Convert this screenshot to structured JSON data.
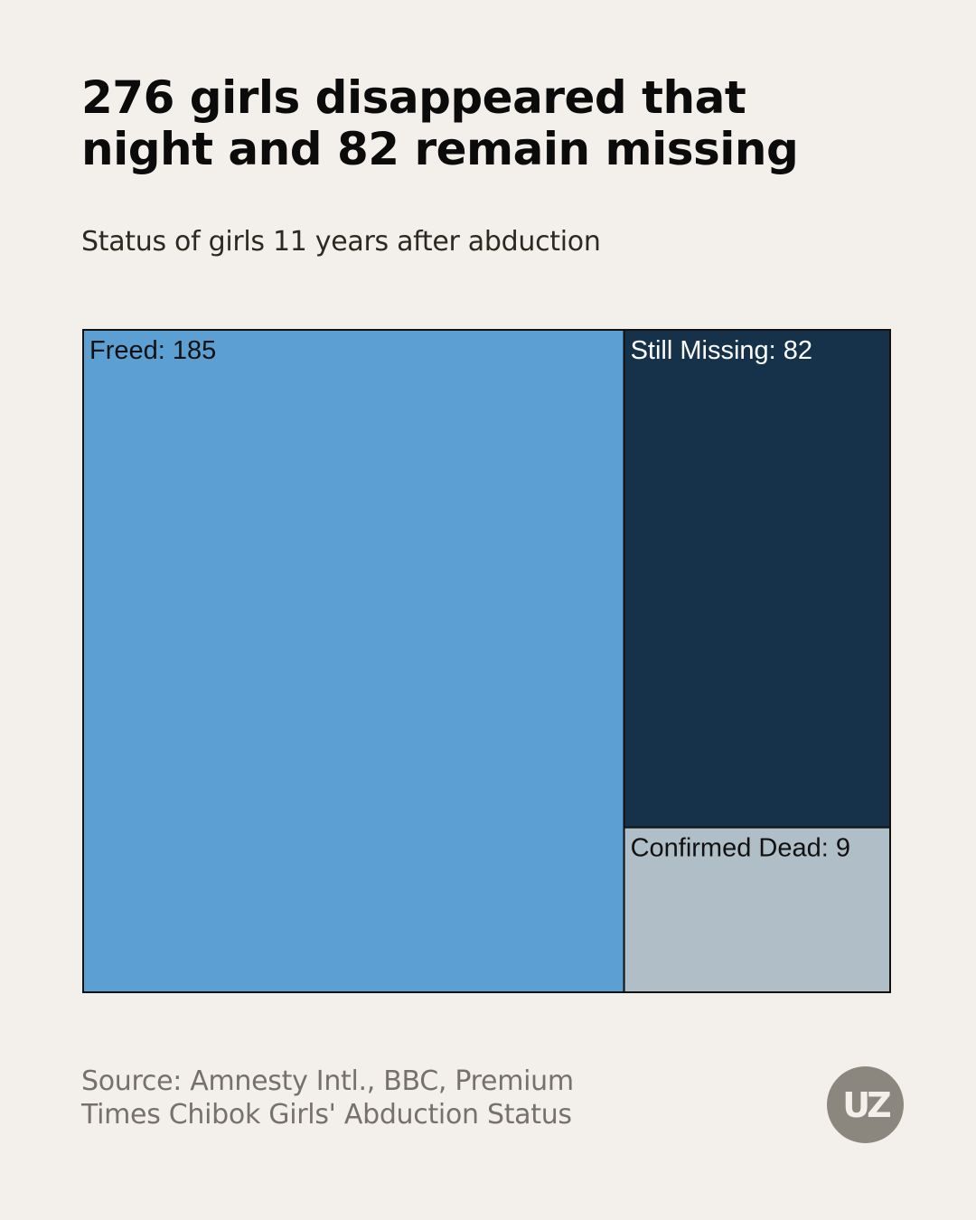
{
  "header": {
    "title_line1": "276 girls disappeared that",
    "title_line2": "night and 82 remain missing",
    "subtitle": "Status of girls 11 years after abduction"
  },
  "chart_data": {
    "type": "treemap",
    "title": "276 girls disappeared that night and 82 remain missing",
    "subtitle": "Status of girls 11 years after abduction",
    "total": 276,
    "items": [
      {
        "name": "Freed",
        "value": 185,
        "label": "Freed: 185",
        "color": "#5c9fd3",
        "text_color": "#111111"
      },
      {
        "name": "Still Missing",
        "value": 82,
        "label": "Still Missing: 82",
        "color": "#15324a",
        "text_color": "#ffffff"
      },
      {
        "name": "Confirmed Dead",
        "value": 9,
        "label": "Confirmed Dead: 9",
        "color": "#afbec7",
        "text_color": "#111111"
      }
    ]
  },
  "footer": {
    "source_line1": "Source: Amnesty Intl., BBC, Premium",
    "source_line2": "Times Chibok Girls' Abduction Status",
    "logo_text": "UZ"
  }
}
